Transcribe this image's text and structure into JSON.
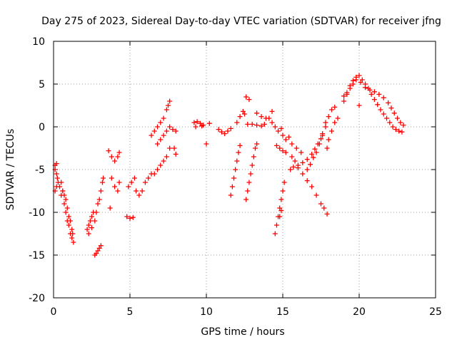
{
  "chart_data": {
    "type": "scatter",
    "title": "Day 275 of 2023, Sidereal Day-to-day VTEC variation (SDTVAR) for receiver jfng",
    "xlabel": "GPS time / hours",
    "ylabel": "SDTVAR / TECUs",
    "xlim": [
      0,
      25
    ],
    "ylim": [
      -20,
      10
    ],
    "x_ticks": [
      "0",
      "5",
      "10",
      "15",
      "20",
      "25"
    ],
    "y_ticks": [
      "-20",
      "-15",
      "-10",
      "-5",
      "0",
      "5",
      "10"
    ],
    "grid": true,
    "marker": "plus",
    "color": "#ff0000",
    "series": [
      {
        "name": "arc-1",
        "points": [
          [
            0.1,
            -4.5
          ],
          [
            0.2,
            -5.5
          ],
          [
            0.3,
            -6.5
          ],
          [
            0.4,
            -7.0
          ],
          [
            0.5,
            -8.0
          ],
          [
            0.6,
            -7.5
          ],
          [
            0.7,
            -9.0
          ],
          [
            0.8,
            -10.0
          ],
          [
            0.9,
            -11.0
          ],
          [
            1.0,
            -11.5
          ],
          [
            1.1,
            -12.5
          ],
          [
            1.2,
            -13.0
          ],
          [
            1.3,
            -13.5
          ]
        ]
      },
      {
        "name": "arc-2",
        "points": [
          [
            0.5,
            -6.5
          ],
          [
            0.6,
            -7.5
          ],
          [
            0.7,
            -8.0
          ],
          [
            0.8,
            -8.5
          ],
          [
            0.9,
            -9.5
          ],
          [
            1.0,
            -10.5
          ],
          [
            1.1,
            -11.0
          ],
          [
            1.2,
            -12.0
          ],
          [
            1.25,
            -12.5
          ]
        ]
      },
      {
        "name": "arc-3",
        "points": [
          [
            0.1,
            -7.5
          ],
          [
            0.2,
            -7.0
          ],
          [
            0.25,
            -6.0
          ],
          [
            0.1,
            -5.0
          ],
          [
            0.2,
            -4.3
          ]
        ]
      },
      {
        "name": "arc-4",
        "points": [
          [
            2.2,
            -12.0
          ],
          [
            2.3,
            -11.5
          ],
          [
            2.4,
            -11.0
          ],
          [
            2.5,
            -10.5
          ],
          [
            2.6,
            -10.0
          ],
          [
            2.3,
            -12.5
          ],
          [
            2.5,
            -11.8
          ]
        ]
      },
      {
        "name": "arc-5",
        "points": [
          [
            2.7,
            -15.0
          ],
          [
            2.8,
            -14.8
          ],
          [
            2.9,
            -14.5
          ],
          [
            3.0,
            -14.2
          ],
          [
            3.1,
            -13.9
          ]
        ]
      },
      {
        "name": "arc-6",
        "points": [
          [
            2.7,
            -11.0
          ],
          [
            2.8,
            -10.0
          ],
          [
            2.9,
            -9.0
          ],
          [
            3.0,
            -8.5
          ],
          [
            3.1,
            -7.5
          ],
          [
            3.2,
            -6.5
          ],
          [
            3.25,
            -6.0
          ]
        ]
      },
      {
        "name": "arc-7",
        "points": [
          [
            3.6,
            -2.8
          ],
          [
            3.8,
            -3.5
          ],
          [
            4.0,
            -4.0
          ],
          [
            4.2,
            -3.5
          ],
          [
            4.3,
            -3.0
          ],
          [
            3.8,
            -6.0
          ],
          [
            4.0,
            -7.0
          ],
          [
            4.2,
            -7.5
          ],
          [
            4.3,
            -6.5
          ],
          [
            3.7,
            -9.5
          ]
        ]
      },
      {
        "name": "arc-8",
        "points": [
          [
            4.8,
            -10.5
          ],
          [
            5.0,
            -10.7
          ],
          [
            5.2,
            -10.6
          ],
          [
            4.9,
            -7.0
          ],
          [
            5.1,
            -6.5
          ],
          [
            5.3,
            -6.0
          ],
          [
            5.4,
            -7.5
          ],
          [
            5.6,
            -8.0
          ],
          [
            5.8,
            -7.5
          ],
          [
            6.0,
            -6.5
          ],
          [
            6.2,
            -6.0
          ],
          [
            6.4,
            -5.5
          ],
          [
            6.6,
            -5.5
          ],
          [
            6.8,
            -5.0
          ],
          [
            7.0,
            -4.5
          ],
          [
            7.2,
            -4.0
          ],
          [
            7.4,
            -3.5
          ],
          [
            7.6,
            -2.5
          ]
        ]
      },
      {
        "name": "arc-9",
        "points": [
          [
            6.4,
            -1.0
          ],
          [
            6.6,
            -0.5
          ],
          [
            6.8,
            0.0
          ],
          [
            7.0,
            0.5
          ],
          [
            7.2,
            1.0
          ],
          [
            7.4,
            2.0
          ],
          [
            7.5,
            2.5
          ],
          [
            7.6,
            3.0
          ]
        ]
      },
      {
        "name": "arc-10",
        "points": [
          [
            6.8,
            -2.0
          ],
          [
            7.0,
            -1.5
          ],
          [
            7.2,
            -1.0
          ],
          [
            7.4,
            -0.5
          ],
          [
            7.6,
            0.0
          ],
          [
            7.8,
            -0.3
          ],
          [
            8.0,
            -0.5
          ],
          [
            7.9,
            -2.5
          ],
          [
            8.0,
            -3.2
          ]
        ]
      },
      {
        "name": "arc-11",
        "points": [
          [
            9.2,
            0.5
          ],
          [
            9.4,
            0.6
          ],
          [
            9.6,
            0.4
          ],
          [
            9.8,
            0.2
          ],
          [
            10.2,
            0.4
          ],
          [
            9.3,
            0.0
          ],
          [
            9.7,
            0.1
          ],
          [
            10.0,
            -2.0
          ]
        ]
      },
      {
        "name": "arc-12",
        "points": [
          [
            10.8,
            -0.3
          ],
          [
            11.0,
            -0.6
          ],
          [
            11.2,
            -0.8
          ],
          [
            11.4,
            -0.5
          ],
          [
            11.6,
            -0.2
          ],
          [
            12.0,
            0.5
          ],
          [
            12.2,
            1.2
          ],
          [
            12.4,
            1.8
          ]
        ]
      },
      {
        "name": "arc-13",
        "points": [
          [
            11.6,
            -8.0
          ],
          [
            11.7,
            -7.0
          ],
          [
            11.8,
            -6.0
          ],
          [
            11.9,
            -5.0
          ],
          [
            12.0,
            -4.0
          ],
          [
            12.1,
            -3.0
          ],
          [
            12.2,
            -2.2
          ]
        ]
      },
      {
        "name": "arc-14",
        "points": [
          [
            12.6,
            -8.5
          ],
          [
            12.7,
            -7.5
          ],
          [
            12.8,
            -6.5
          ],
          [
            12.9,
            -5.5
          ],
          [
            13.0,
            -4.5
          ],
          [
            13.1,
            -3.5
          ],
          [
            13.2,
            -2.5
          ],
          [
            13.3,
            -2.0
          ]
        ]
      },
      {
        "name": "arc-15",
        "points": [
          [
            12.6,
            3.5
          ],
          [
            12.8,
            3.2
          ],
          [
            12.5,
            1.5
          ],
          [
            12.7,
            0.3
          ],
          [
            13.0,
            0.3
          ],
          [
            13.3,
            0.2
          ],
          [
            13.6,
            0.1
          ],
          [
            13.8,
            0.3
          ],
          [
            14.1,
            1.0
          ],
          [
            14.3,
            1.8
          ],
          [
            13.3,
            1.6
          ],
          [
            13.6,
            1.2
          ],
          [
            13.9,
            1.0
          ]
        ]
      },
      {
        "name": "arc-16",
        "points": [
          [
            14.5,
            -12.5
          ],
          [
            14.6,
            -11.5
          ],
          [
            14.7,
            -10.5
          ],
          [
            14.8,
            -9.5
          ],
          [
            14.9,
            -8.5
          ],
          [
            15.0,
            -7.5
          ],
          [
            15.1,
            -6.5
          ],
          [
            14.8,
            -10.5
          ],
          [
            14.9,
            -9.8
          ]
        ]
      },
      {
        "name": "arc-17",
        "points": [
          [
            14.3,
            0.5
          ],
          [
            14.5,
            0.0
          ],
          [
            14.7,
            -0.5
          ],
          [
            14.9,
            -0.2
          ],
          [
            15.0,
            -1.0
          ],
          [
            15.2,
            -1.5
          ],
          [
            15.4,
            -1.2
          ],
          [
            15.6,
            -2.0
          ],
          [
            15.9,
            -2.5
          ],
          [
            16.2,
            -3.0
          ]
        ]
      },
      {
        "name": "arc-18",
        "points": [
          [
            14.6,
            -2.2
          ],
          [
            14.8,
            -2.5
          ],
          [
            15.0,
            -2.8
          ],
          [
            15.2,
            -3.0
          ],
          [
            15.6,
            -3.5
          ],
          [
            15.8,
            -4.0
          ],
          [
            16.0,
            -4.8
          ],
          [
            16.3,
            -5.5
          ],
          [
            16.6,
            -6.3
          ],
          [
            16.9,
            -7.0
          ],
          [
            17.2,
            -8.0
          ],
          [
            17.5,
            -9.0
          ],
          [
            17.7,
            -9.5
          ],
          [
            17.9,
            -10.2
          ]
        ]
      },
      {
        "name": "arc-19",
        "points": [
          [
            15.5,
            -5.0
          ],
          [
            15.7,
            -4.7
          ],
          [
            16.0,
            -4.5
          ],
          [
            16.3,
            -4.2
          ],
          [
            16.6,
            -3.8
          ],
          [
            16.9,
            -3.2
          ],
          [
            17.1,
            -2.6
          ],
          [
            17.3,
            -2.0
          ],
          [
            17.5,
            -1.4
          ],
          [
            17.6,
            -0.8
          ],
          [
            17.8,
            0.0
          ]
        ]
      },
      {
        "name": "arc-20",
        "points": [
          [
            16.6,
            -5.0
          ],
          [
            16.8,
            -4.4
          ],
          [
            17.0,
            -3.6
          ],
          [
            17.2,
            -3.0
          ],
          [
            17.4,
            -2.0
          ],
          [
            17.6,
            -1.0
          ],
          [
            17.8,
            0.5
          ],
          [
            18.0,
            1.2
          ],
          [
            18.2,
            2.0
          ],
          [
            18.4,
            2.3
          ]
        ]
      },
      {
        "name": "arc-21",
        "points": [
          [
            18.0,
            -1.5
          ],
          [
            18.2,
            -0.5
          ],
          [
            18.4,
            0.5
          ],
          [
            18.6,
            1.0
          ],
          [
            17.9,
            -2.5
          ]
        ]
      },
      {
        "name": "arc-22",
        "points": [
          [
            19.0,
            3.0
          ],
          [
            19.2,
            3.8
          ],
          [
            19.4,
            4.5
          ],
          [
            19.6,
            5.0
          ],
          [
            19.8,
            5.5
          ],
          [
            20.0,
            6.0
          ],
          [
            20.2,
            5.5
          ],
          [
            20.4,
            5.0
          ],
          [
            20.6,
            4.5
          ],
          [
            20.8,
            3.8
          ],
          [
            21.0,
            3.2
          ],
          [
            21.2,
            2.6
          ],
          [
            21.4,
            2.0
          ],
          [
            21.6,
            1.5
          ],
          [
            21.8,
            1.0
          ],
          [
            22.0,
            0.5
          ],
          [
            22.2,
            0.0
          ],
          [
            22.4,
            -0.3
          ],
          [
            22.6,
            -0.5
          ],
          [
            22.8,
            -0.6
          ]
        ]
      },
      {
        "name": "arc-23",
        "points": [
          [
            19.2,
            4.0
          ],
          [
            19.4,
            4.8
          ],
          [
            19.6,
            5.4
          ],
          [
            19.8,
            5.8
          ],
          [
            20.1,
            5.2
          ],
          [
            20.4,
            4.6
          ],
          [
            20.7,
            4.3
          ],
          [
            21.0,
            4.1
          ],
          [
            21.3,
            3.8
          ],
          [
            21.6,
            3.4
          ],
          [
            21.9,
            2.8
          ],
          [
            22.1,
            2.2
          ],
          [
            22.3,
            1.6
          ],
          [
            22.5,
            1.0
          ],
          [
            22.7,
            0.5
          ],
          [
            22.9,
            0.2
          ],
          [
            20.0,
            2.5
          ],
          [
            19.0,
            3.6
          ]
        ]
      }
    ]
  }
}
